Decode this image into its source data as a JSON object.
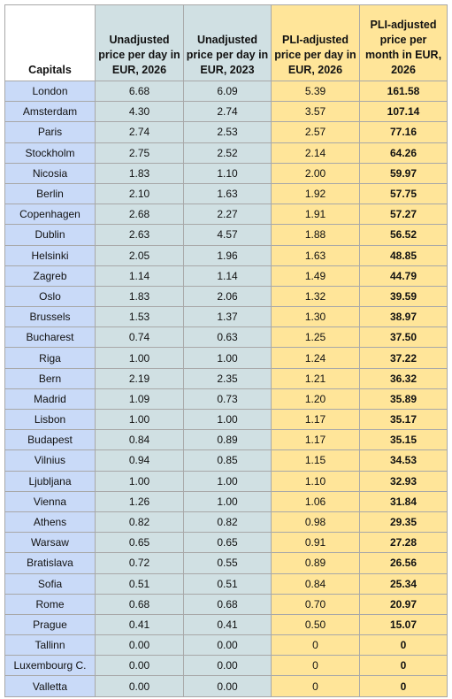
{
  "table": {
    "header": [
      "Capitals",
      "Unadjusted price per day in EUR, 2026",
      "Unadjusted price per day in EUR, 2023",
      "PLI-adjusted price per day in EUR, 2026",
      "PLI-adjusted price per month in EUR, 2026"
    ],
    "rows": [
      [
        "London",
        "6.68",
        "6.09",
        "5.39",
        "161.58"
      ],
      [
        "Amsterdam",
        "4.30",
        "2.74",
        "3.57",
        "107.14"
      ],
      [
        "Paris",
        "2.74",
        "2.53",
        "2.57",
        "77.16"
      ],
      [
        "Stockholm",
        "2.75",
        "2.52",
        "2.14",
        "64.26"
      ],
      [
        "Nicosia",
        "1.83",
        "1.10",
        "2.00",
        "59.97"
      ],
      [
        "Berlin",
        "2.10",
        "1.63",
        "1.92",
        "57.75"
      ],
      [
        "Copenhagen",
        "2.68",
        "2.27",
        "1.91",
        "57.27"
      ],
      [
        "Dublin",
        "2.63",
        "4.57",
        "1.88",
        "56.52"
      ],
      [
        "Helsinki",
        "2.05",
        "1.96",
        "1.63",
        "48.85"
      ],
      [
        "Zagreb",
        "1.14",
        "1.14",
        "1.49",
        "44.79"
      ],
      [
        "Oslo",
        "1.83",
        "2.06",
        "1.32",
        "39.59"
      ],
      [
        "Brussels",
        "1.53",
        "1.37",
        "1.30",
        "38.97"
      ],
      [
        "Bucharest",
        "0.74",
        "0.63",
        "1.25",
        "37.50"
      ],
      [
        "Riga",
        "1.00",
        "1.00",
        "1.24",
        "37.22"
      ],
      [
        "Bern",
        "2.19",
        "2.35",
        "1.21",
        "36.32"
      ],
      [
        "Madrid",
        "1.09",
        "0.73",
        "1.20",
        "35.89"
      ],
      [
        "Lisbon",
        "1.00",
        "1.00",
        "1.17",
        "35.17"
      ],
      [
        "Budapest",
        "0.84",
        "0.89",
        "1.17",
        "35.15"
      ],
      [
        "Vilnius",
        "0.94",
        "0.85",
        "1.15",
        "34.53"
      ],
      [
        "Ljubljana",
        "1.00",
        "1.00",
        "1.10",
        "32.93"
      ],
      [
        "Vienna",
        "1.26",
        "1.00",
        "1.06",
        "31.84"
      ],
      [
        "Athens",
        "0.82",
        "0.82",
        "0.98",
        "29.35"
      ],
      [
        "Warsaw",
        "0.65",
        "0.65",
        "0.91",
        "27.28"
      ],
      [
        "Bratislava",
        "0.72",
        "0.55",
        "0.89",
        "26.56"
      ],
      [
        "Sofia",
        "0.51",
        "0.51",
        "0.84",
        "25.34"
      ],
      [
        "Rome",
        "0.68",
        "0.68",
        "0.70",
        "20.97"
      ],
      [
        "Prague",
        "0.41",
        "0.41",
        "0.50",
        "15.07"
      ],
      [
        "Tallinn",
        "0.00",
        "0.00",
        "0",
        "0"
      ],
      [
        "Luxembourg C.",
        "0.00",
        "0.00",
        "0",
        "0"
      ],
      [
        "Valletta",
        "0.00",
        "0.00",
        "0",
        "0"
      ]
    ]
  }
}
